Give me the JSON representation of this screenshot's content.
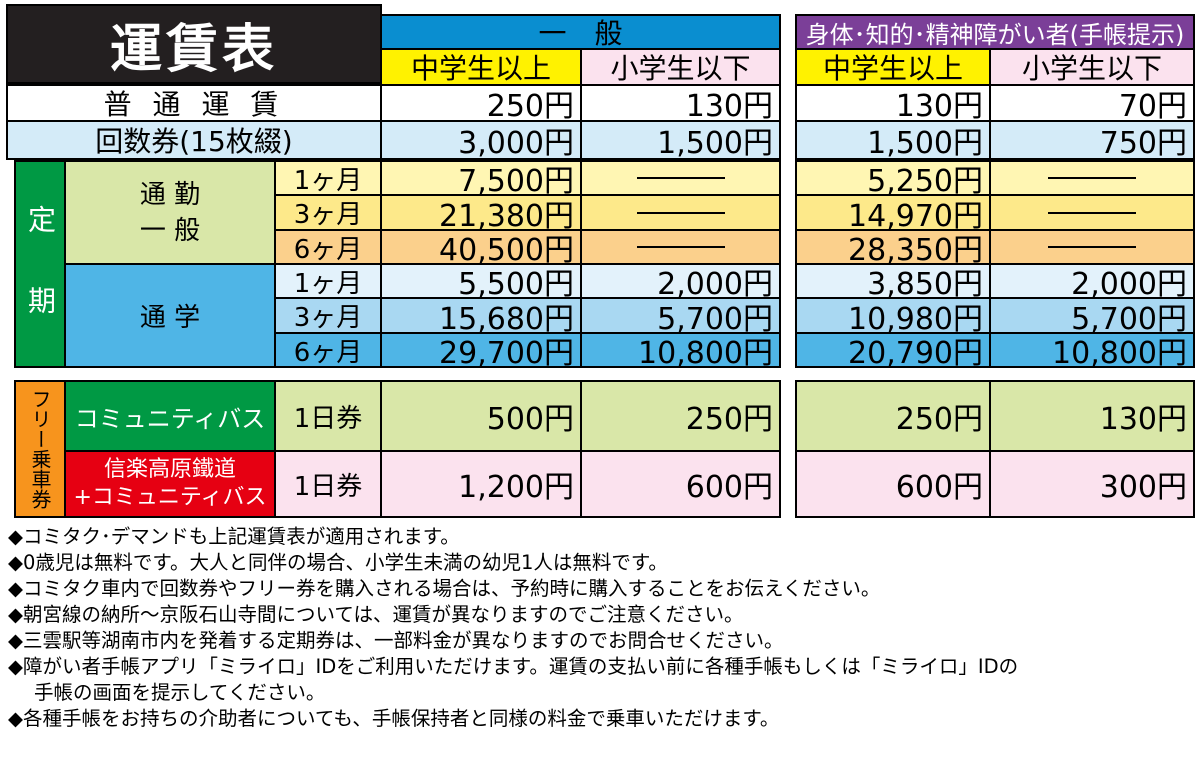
{
  "title": "運賃表",
  "header": {
    "general": "一　般",
    "disabled": "身体･知的･精神障がい者(手帳提示)",
    "junior_high_up": "中学生以上",
    "elementary_down": "小学生以下"
  },
  "rows": {
    "regular": {
      "label": "普 通 運 賃",
      "values": [
        "250円",
        "130円",
        "130円",
        "70円"
      ]
    },
    "coupon": {
      "label": "回数券(15枚綴)",
      "values": [
        "3,000円",
        "1,500円",
        "1,500円",
        "750円"
      ]
    }
  },
  "pass": {
    "label": "定 期",
    "commute": {
      "label": "通 勤\n一 般",
      "rows": [
        {
          "period": "1ヶ月",
          "values": [
            "7,500円",
            "———",
            "5,250円",
            "———"
          ]
        },
        {
          "period": "3ヶ月",
          "values": [
            "21,380円",
            "———",
            "14,970円",
            "———"
          ]
        },
        {
          "period": "6ヶ月",
          "values": [
            "40,500円",
            "———",
            "28,350円",
            "———"
          ]
        }
      ]
    },
    "school": {
      "label": "通 学",
      "rows": [
        {
          "period": "1ヶ月",
          "values": [
            "5,500円",
            "2,000円",
            "3,850円",
            "2,000円"
          ]
        },
        {
          "period": "3ヶ月",
          "values": [
            "15,680円",
            "5,700円",
            "10,980円",
            "5,700円"
          ]
        },
        {
          "period": "6ヶ月",
          "values": [
            "29,700円",
            "10,800円",
            "20,790円",
            "10,800円"
          ]
        }
      ]
    }
  },
  "free": {
    "label": "フリー乗車券",
    "community": {
      "label": "コミュニティバス",
      "ticket": "1日券",
      "values": [
        "500円",
        "250円",
        "250円",
        "130円"
      ]
    },
    "shigaraki": {
      "label1": "信楽高原鐵道",
      "label2": "+コミュニティバス",
      "ticket": "1日券",
      "values": [
        "1,200円",
        "600円",
        "600円",
        "300円"
      ]
    }
  },
  "notes": [
    "◆コミタク･デマンドも上記運賃表が適用されます。",
    "◆0歳児は無料です。大人と同伴の場合、小学生未満の幼児1人は無料です。",
    "◆コミタク車内で回数券やフリー券を購入される場合は、予約時に購入することをお伝えください。",
    "◆朝宮線の納所～京阪石山寺間については、運賃が異なりますのでご注意ください。",
    "◆三雲駅等湖南市内を発着する定期券は、一部料金が異なりますのでお問合せください。",
    "◆障がい者手帳アプリ「ミライロ」IDをご利用いただけます。運賃の支払い前に各種手帳もしくは「ミライロ」IDの",
    "手帳の画面を提示してください。",
    "◆各種手帳をお持ちの介助者についても、手帳保持者と同様の料金で乗車いただけます。"
  ],
  "colors": {
    "black": "#231f20",
    "blue": "#0a8ed0",
    "purple": "#7b3f98",
    "yellow": "#fff200",
    "pink": "#fbe2ee",
    "light_blue": "#d4ebf8",
    "green": "#009944",
    "pale_green": "#d9e7a8",
    "red": "#e60012",
    "orange": "#f7941d",
    "pale_yellow": "#fff6b3",
    "orange_light": "#fbd08c",
    "school_blue": "#4fb5e6"
  }
}
